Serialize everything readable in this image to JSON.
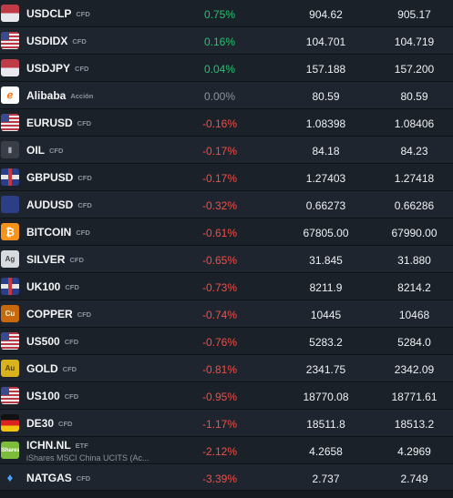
{
  "rows": [
    {
      "symbol": "USDCLP",
      "type": "CFD",
      "icon": "flag-icon",
      "change": "0.75%",
      "trend": "up",
      "bid": "904.62",
      "ask": "905.17"
    },
    {
      "symbol": "USDIDX",
      "type": "CFD",
      "icon": "us-flag-icon",
      "change": "0.16%",
      "trend": "up",
      "bid": "104.701",
      "ask": "104.719"
    },
    {
      "symbol": "USDJPY",
      "type": "CFD",
      "icon": "flag-icon",
      "change": "0.04%",
      "trend": "up",
      "bid": "157.188",
      "ask": "157.200"
    },
    {
      "symbol": "Alibaba",
      "type": "Acción",
      "icon": "alibaba-logo-icon",
      "change": "0.00%",
      "trend": "flat",
      "bid": "80.59",
      "ask": "80.59"
    },
    {
      "symbol": "EURUSD",
      "type": "CFD",
      "icon": "us-flag-icon",
      "change": "-0.16%",
      "trend": "down",
      "bid": "1.08398",
      "ask": "1.08406"
    },
    {
      "symbol": "OIL",
      "type": "CFD",
      "icon": "oil-barrel-icon",
      "change": "-0.17%",
      "trend": "down",
      "bid": "84.18",
      "ask": "84.23"
    },
    {
      "symbol": "GBPUSD",
      "type": "CFD",
      "icon": "uk-flag-icon",
      "change": "-0.17%",
      "trend": "down",
      "bid": "1.27403",
      "ask": "1.27418"
    },
    {
      "symbol": "AUDUSD",
      "type": "CFD",
      "icon": "au-flag-icon",
      "change": "-0.32%",
      "trend": "down",
      "bid": "0.66273",
      "ask": "0.66286"
    },
    {
      "symbol": "BITCOIN",
      "type": "CFD",
      "icon": "bitcoin-icon",
      "change": "-0.61%",
      "trend": "down",
      "bid": "67805.00",
      "ask": "67990.00"
    },
    {
      "symbol": "SILVER",
      "type": "CFD",
      "icon": "silver-icon",
      "change": "-0.65%",
      "trend": "down",
      "bid": "31.845",
      "ask": "31.880"
    },
    {
      "symbol": "UK100",
      "type": "CFD",
      "icon": "uk-flag-icon",
      "change": "-0.73%",
      "trend": "down",
      "bid": "8211.9",
      "ask": "8214.2"
    },
    {
      "symbol": "COPPER",
      "type": "CFD",
      "icon": "copper-icon",
      "change": "-0.74%",
      "trend": "down",
      "bid": "10445",
      "ask": "10468"
    },
    {
      "symbol": "US500",
      "type": "CFD",
      "icon": "us-flag-icon",
      "change": "-0.76%",
      "trend": "down",
      "bid": "5283.2",
      "ask": "5284.0"
    },
    {
      "symbol": "GOLD",
      "type": "CFD",
      "icon": "gold-icon",
      "change": "-0.81%",
      "trend": "down",
      "bid": "2341.75",
      "ask": "2342.09"
    },
    {
      "symbol": "US100",
      "type": "CFD",
      "icon": "us-flag-icon",
      "change": "-0.95%",
      "trend": "down",
      "bid": "18770.08",
      "ask": "18771.61"
    },
    {
      "symbol": "DE30",
      "type": "CFD",
      "icon": "de-flag-icon",
      "change": "-1.17%",
      "trend": "down",
      "bid": "18511.8",
      "ask": "18513.2"
    },
    {
      "symbol": "ICHN.NL",
      "type": "ETF",
      "subtitle": "iShares MSCI China UCITS (Ac...",
      "icon": "ishares-logo-icon",
      "change": "-2.12%",
      "trend": "down",
      "bid": "4.2658",
      "ask": "4.2969"
    },
    {
      "symbol": "NATGAS",
      "type": "CFD",
      "icon": "flame-icon",
      "change": "-3.39%",
      "trend": "down",
      "bid": "2.737",
      "ask": "2.749"
    }
  ],
  "icon_glyphs": {
    "alibaba": "ℯ",
    "bitcoin": "₿",
    "oil": "▮",
    "silver": "Ag",
    "copper": "Cu",
    "gold": "Au",
    "ishares": "iShares",
    "flame": "♦"
  }
}
